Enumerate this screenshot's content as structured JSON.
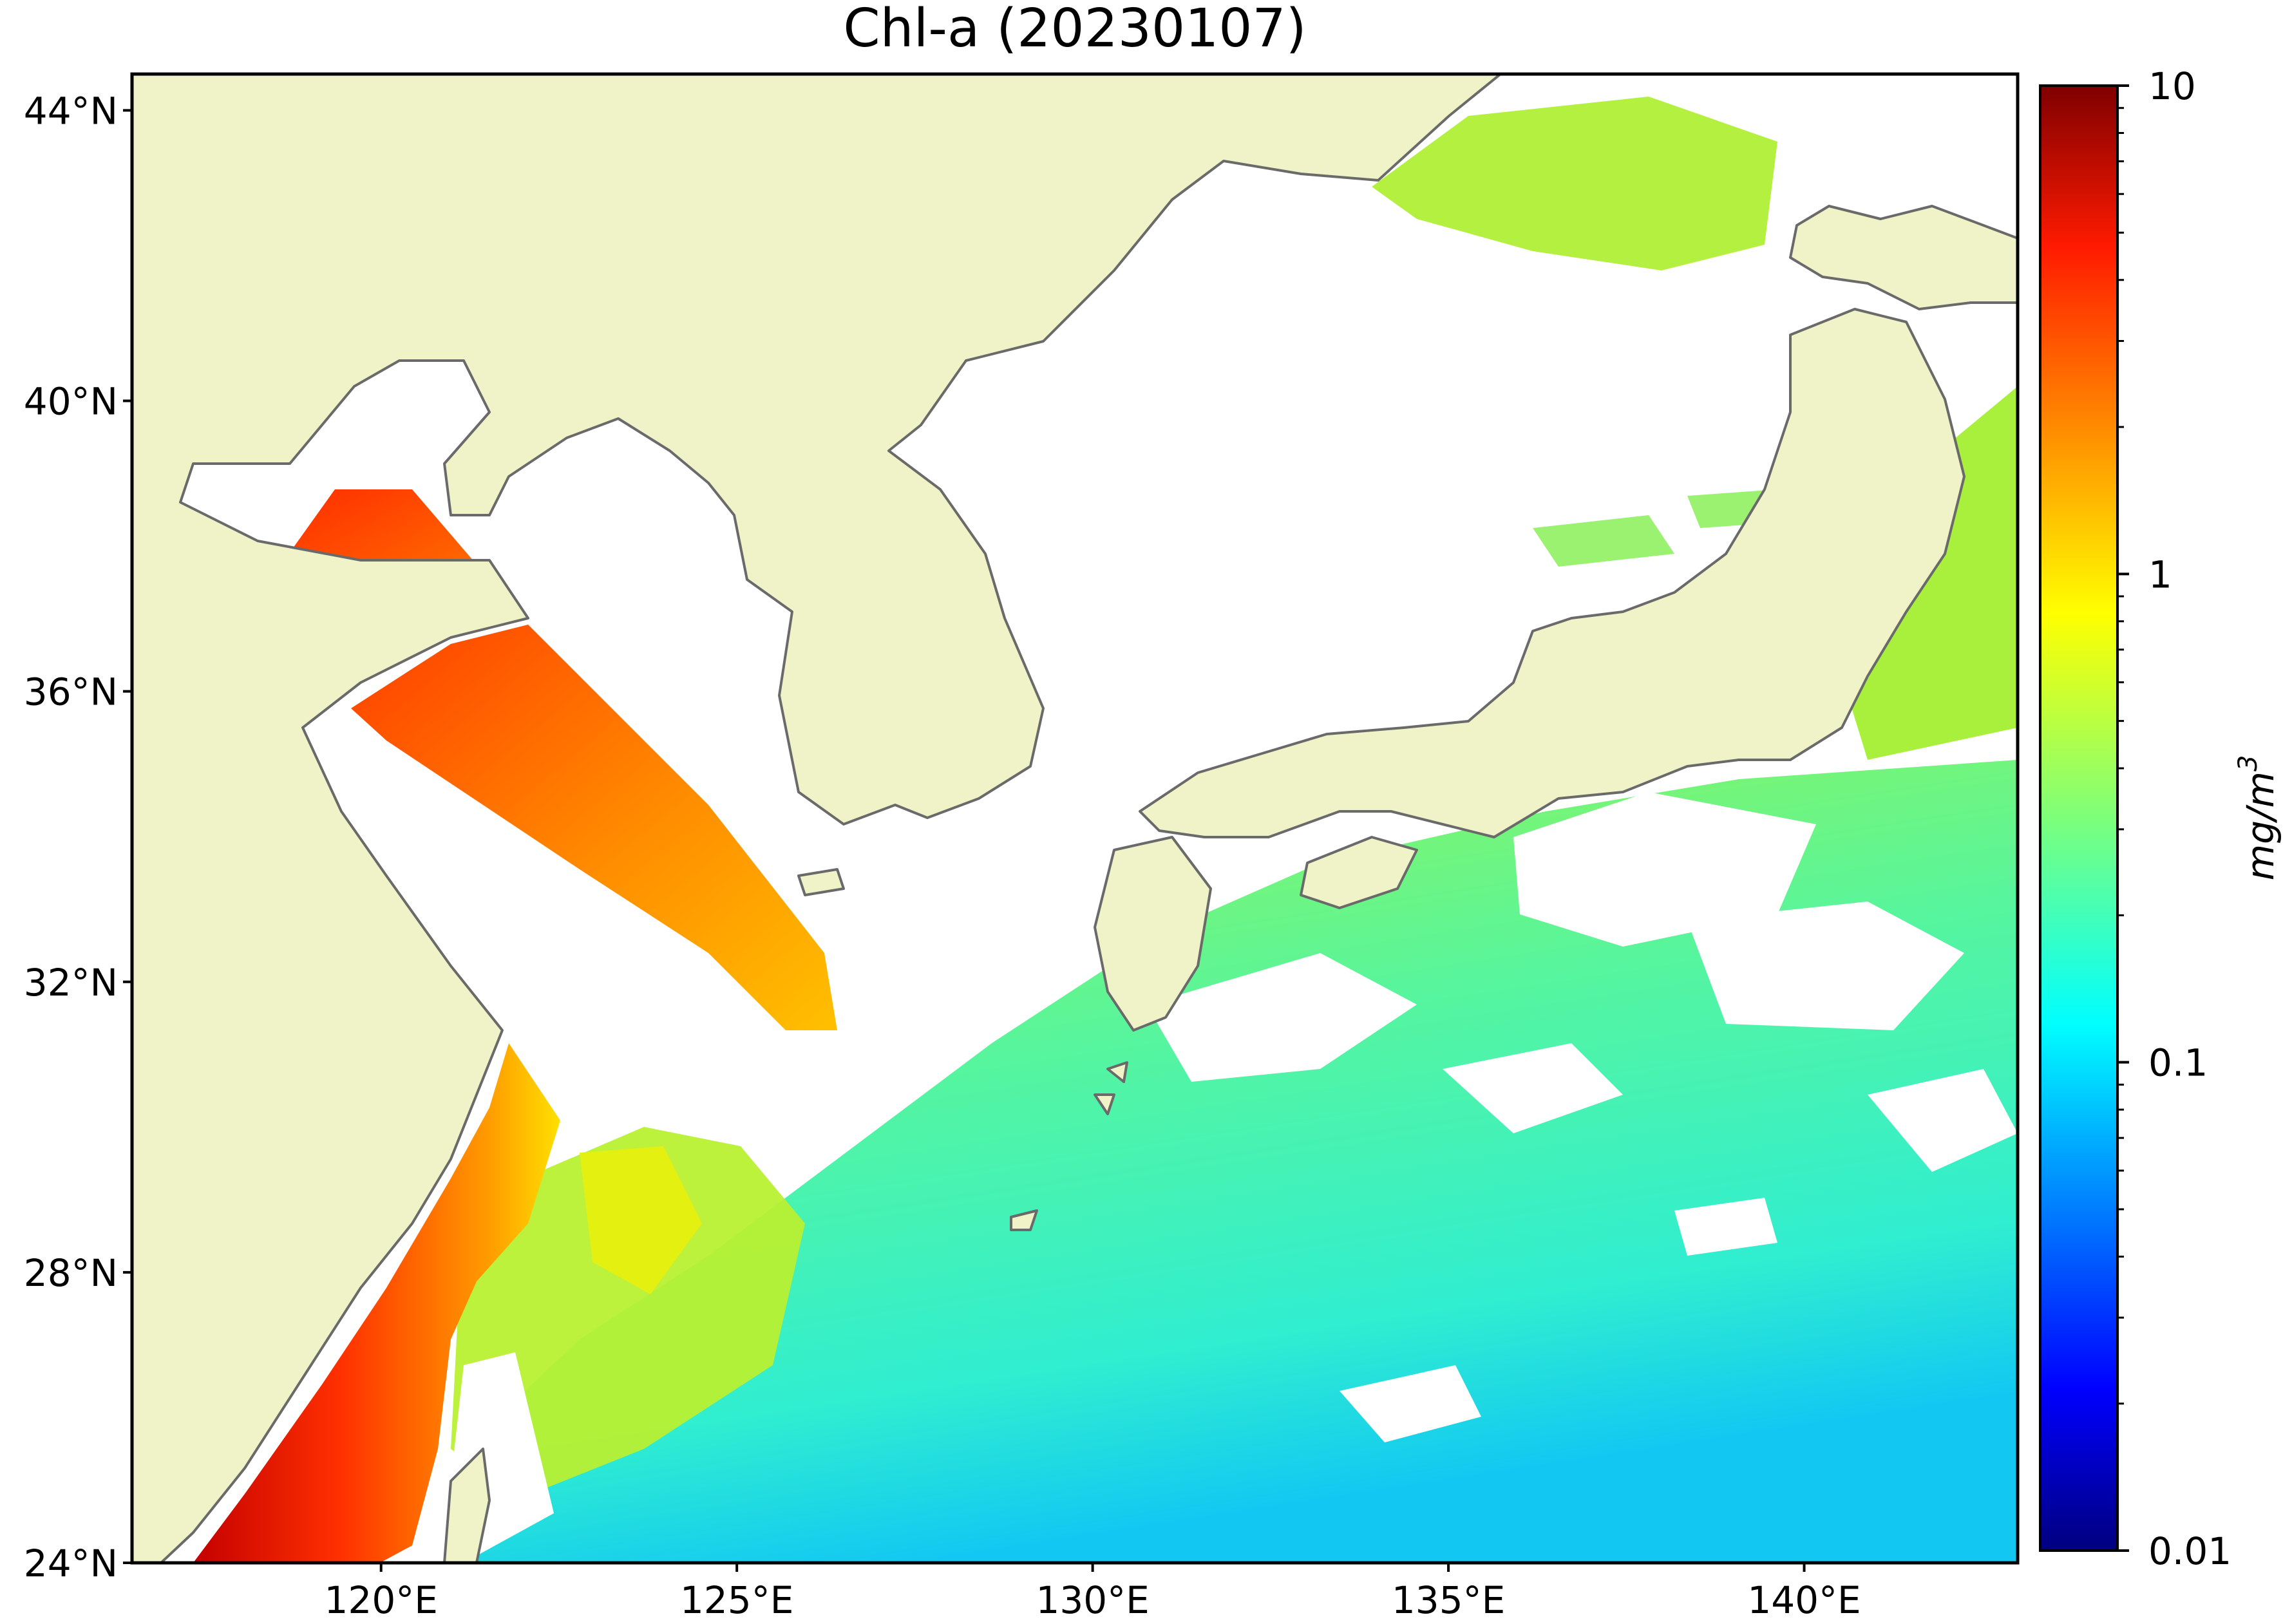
{
  "title": "Chl-a (20230107)",
  "map": {
    "lon_range": [
      116.5,
      143.0
    ],
    "lat_range": [
      24.0,
      44.5
    ],
    "lon_ticks": [
      {
        "value": 120,
        "label": "120°E"
      },
      {
        "value": 125,
        "label": "125°E"
      },
      {
        "value": 130,
        "label": "130°E"
      },
      {
        "value": 135,
        "label": "135°E"
      },
      {
        "value": 140,
        "label": "140°E"
      }
    ],
    "lat_ticks": [
      {
        "value": 44,
        "label": "44°N"
      },
      {
        "value": 40,
        "label": "40°N"
      },
      {
        "value": 36,
        "label": "36°N"
      },
      {
        "value": 32,
        "label": "32°N"
      },
      {
        "value": 28,
        "label": "28°N"
      },
      {
        "value": 24,
        "label": "24°N"
      }
    ],
    "land_color": "#f0f3c8",
    "coastline_color": "#6a6a6a",
    "nodata_color": "#ffffff"
  },
  "colorbar": {
    "label": "mg/m",
    "label_superscript": "3",
    "scale": "log",
    "range": [
      0.01,
      10
    ],
    "ticks": [
      {
        "value": 10,
        "label": "10"
      },
      {
        "value": 1,
        "label": "1"
      },
      {
        "value": 0.1,
        "label": "0.1"
      },
      {
        "value": 0.01,
        "label": "0.01"
      }
    ],
    "colormap": "jet",
    "colors": [
      "#00007f",
      "#0000ff",
      "#0080ff",
      "#00ffff",
      "#80ff80",
      "#ffff00",
      "#ff8000",
      "#ff0000",
      "#7f0000"
    ]
  }
}
